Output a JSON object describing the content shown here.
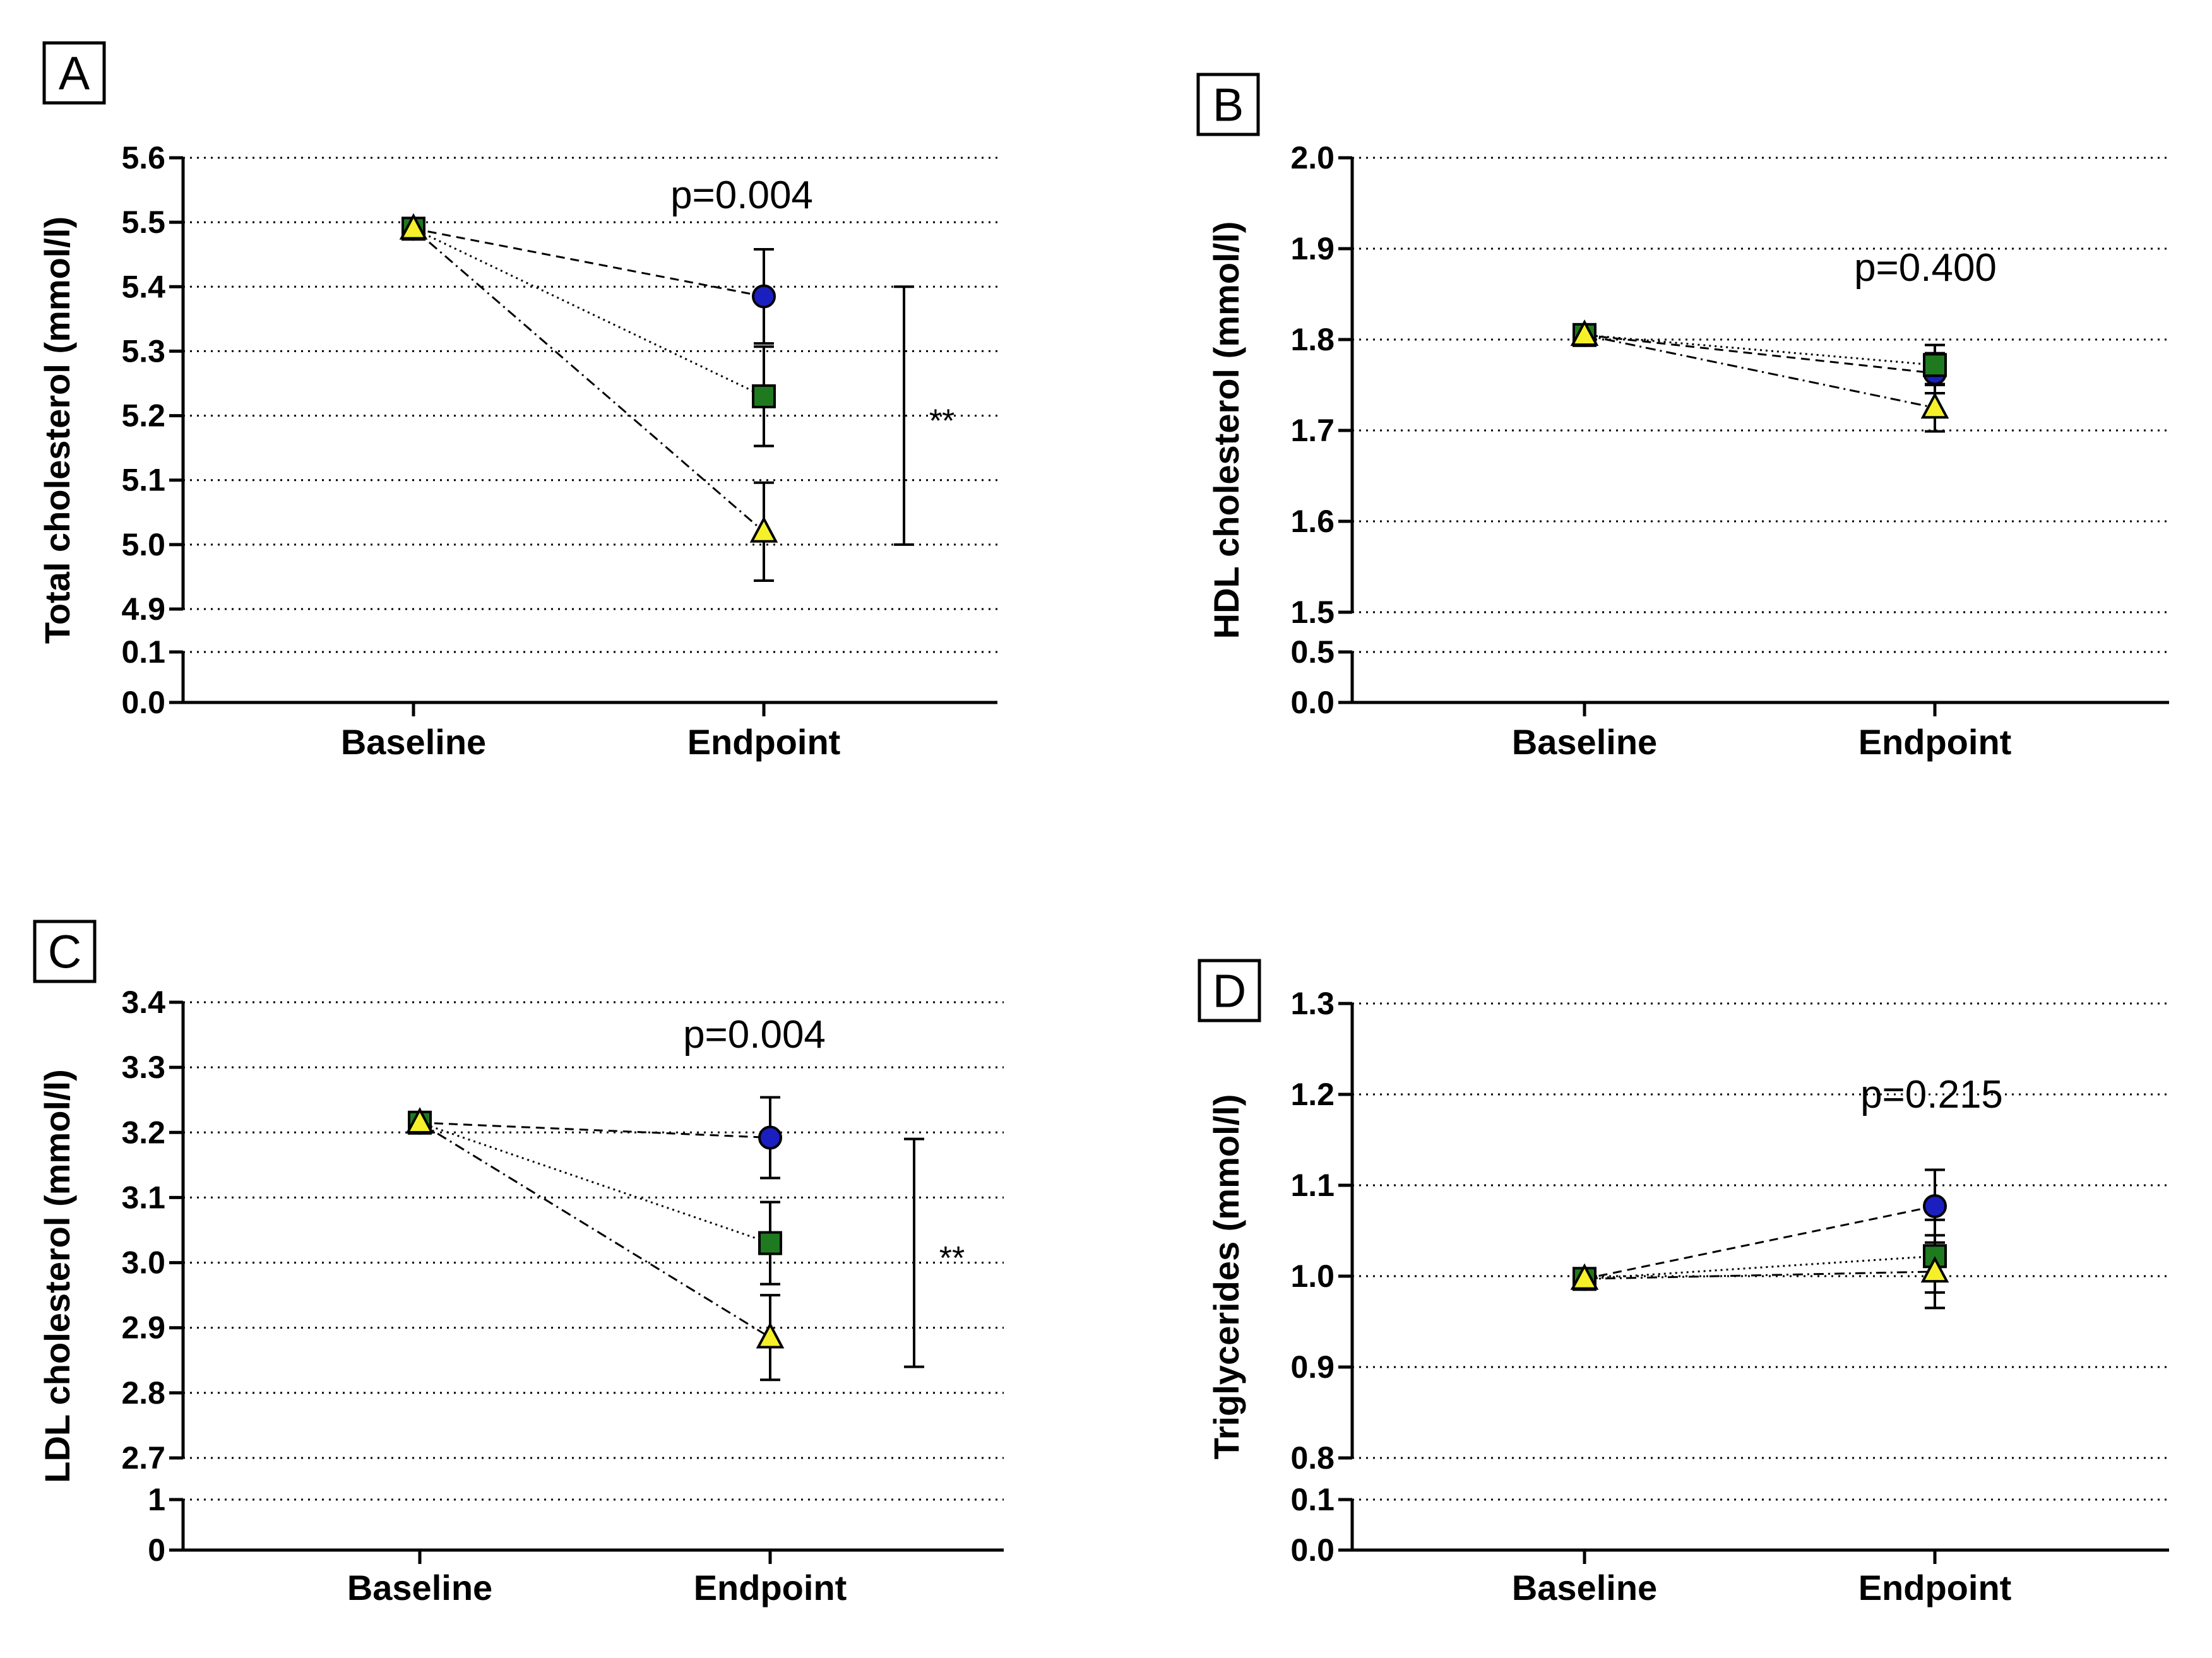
{
  "groups": [
    {
      "name": "circle",
      "marker": "circle",
      "color": "#1c1fbf"
    },
    {
      "name": "square",
      "marker": "square",
      "color": "#1f7a1f"
    },
    {
      "name": "triangle",
      "marker": "triangle",
      "color": "#f5f02a"
    }
  ],
  "chart_data": [
    {
      "panel": "A",
      "type": "line",
      "ylabel": "Total cholesterol (mmol/l)",
      "categories": [
        "Baseline",
        "Endpoint"
      ],
      "p_value": "p=0.004",
      "yticks_upper": [
        "4.9",
        "5.0",
        "5.1",
        "5.2",
        "5.3",
        "5.4",
        "5.5",
        "5.6"
      ],
      "yticks_lower": [
        "0.0",
        "0.1"
      ],
      "ylim_upper": [
        4.9,
        5.6
      ],
      "ylim_lower": [
        0.0,
        0.1
      ],
      "series": [
        {
          "name": "circle",
          "values": [
            5.49,
            5.385
          ],
          "err": [
            0.0,
            0.073
          ]
        },
        {
          "name": "square",
          "values": [
            5.49,
            5.23
          ],
          "err": [
            0.0,
            0.077
          ]
        },
        {
          "name": "triangle",
          "values": [
            5.49,
            5.02
          ],
          "err": [
            0.0,
            0.076
          ]
        }
      ],
      "significance": {
        "label": "**",
        "from": 5.4,
        "to": 5.0
      }
    },
    {
      "panel": "B",
      "type": "line",
      "ylabel": "HDL cholesterol (mmol/l)",
      "categories": [
        "Baseline",
        "Endpoint"
      ],
      "p_value": "p=0.400",
      "yticks_upper": [
        "1.5",
        "1.6",
        "1.7",
        "1.8",
        "1.9",
        "2.0"
      ],
      "yticks_lower": [
        "0.0",
        "0.5"
      ],
      "ylim_upper": [
        1.5,
        2.0
      ],
      "ylim_lower": [
        0.0,
        0.5
      ],
      "series": [
        {
          "name": "circle",
          "values": [
            1.805,
            1.763
          ],
          "err": [
            0.0,
            0.022
          ]
        },
        {
          "name": "square",
          "values": [
            1.805,
            1.772
          ],
          "err": [
            0.0,
            0.022
          ]
        },
        {
          "name": "triangle",
          "values": [
            1.805,
            1.725
          ],
          "err": [
            0.0,
            0.026
          ]
        }
      ],
      "significance": null
    },
    {
      "panel": "C",
      "type": "line",
      "ylabel": "LDL cholesterol (mmol/l)",
      "categories": [
        "Baseline",
        "Endpoint"
      ],
      "p_value": "p=0.004",
      "yticks_upper": [
        "2.7",
        "2.8",
        "2.9",
        "3.0",
        "3.1",
        "3.2",
        "3.3",
        "3.4"
      ],
      "yticks_lower": [
        "0",
        "1"
      ],
      "ylim_upper": [
        2.7,
        3.4
      ],
      "ylim_lower": [
        0,
        1
      ],
      "series": [
        {
          "name": "circle",
          "values": [
            3.215,
            3.192
          ],
          "err": [
            0.0,
            0.062
          ]
        },
        {
          "name": "square",
          "values": [
            3.215,
            3.03
          ],
          "err": [
            0.0,
            0.063
          ]
        },
        {
          "name": "triangle",
          "values": [
            3.215,
            2.885
          ],
          "err": [
            0.0,
            0.065
          ]
        }
      ],
      "significance": {
        "label": "**",
        "from": 3.19,
        "to": 2.84
      }
    },
    {
      "panel": "D",
      "type": "line",
      "ylabel": "Triglycerides (mmol/l)",
      "categories": [
        "Baseline",
        "Endpoint"
      ],
      "p_value": "p=0.215",
      "yticks_upper": [
        "0.8",
        "0.9",
        "1.0",
        "1.1",
        "1.2",
        "1.3"
      ],
      "yticks_lower": [
        "0.0",
        "0.1"
      ],
      "ylim_upper": [
        0.8,
        1.3
      ],
      "ylim_lower": [
        0.0,
        0.1
      ],
      "series": [
        {
          "name": "circle",
          "values": [
            0.997,
            1.077
          ],
          "err": [
            0.0,
            0.04
          ]
        },
        {
          "name": "square",
          "values": [
            0.997,
            1.022
          ],
          "err": [
            0.0,
            0.04
          ]
        },
        {
          "name": "triangle",
          "values": [
            0.997,
            1.005
          ],
          "err": [
            0.0,
            0.04
          ]
        }
      ],
      "significance": null
    }
  ]
}
